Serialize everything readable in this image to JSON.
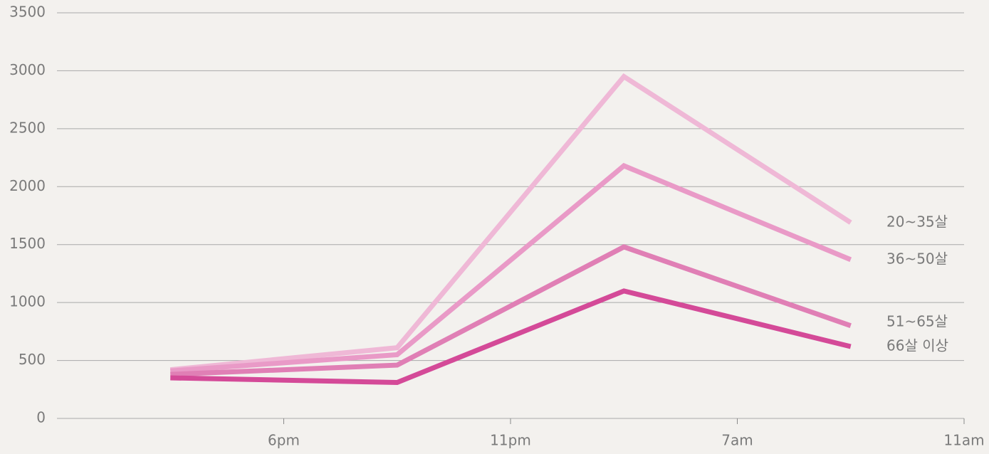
{
  "chart_data": {
    "type": "line",
    "categories": [
      null,
      null,
      null,
      null
    ],
    "xtick_labels": [
      "6pm",
      "11pm",
      "7am",
      "11am"
    ],
    "series": [
      {
        "name": "20~35살",
        "color": "#efb8d6",
        "values": [
          420,
          610,
          2950,
          1690
        ]
      },
      {
        "name": "36~50살",
        "color": "#e99ac7",
        "values": [
          410,
          550,
          2180,
          1370
        ]
      },
      {
        "name": "51~65살",
        "color": "#e07fb5",
        "values": [
          380,
          460,
          1480,
          800
        ]
      },
      {
        "name": "66살 이상",
        "color": "#d44a98",
        "values": [
          350,
          310,
          1100,
          620
        ]
      }
    ],
    "ylim": [
      0,
      3500
    ],
    "yticks": [
      0,
      500,
      1000,
      1500,
      2000,
      2500,
      3000,
      3500
    ],
    "grid": true
  }
}
